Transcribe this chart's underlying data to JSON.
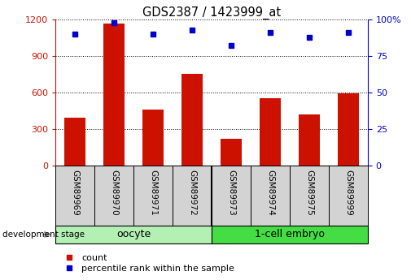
{
  "title": "GDS2387 / 1423999_at",
  "samples": [
    "GSM89969",
    "GSM89970",
    "GSM89971",
    "GSM89972",
    "GSM89973",
    "GSM89974",
    "GSM89975",
    "GSM89999"
  ],
  "counts": [
    390,
    1170,
    460,
    750,
    220,
    555,
    420,
    590
  ],
  "percentile_ranks": [
    90,
    98,
    90,
    93,
    82,
    91,
    88,
    91
  ],
  "group_boundary": 4,
  "group_labels": [
    "oocyte",
    "1-cell embryo"
  ],
  "group_color_light": "#b3f0b3",
  "group_color_dark": "#44dd44",
  "bar_color": "#cc1100",
  "dot_color": "#0000cc",
  "left_axis_color": "#cc1100",
  "right_axis_color": "#0000cc",
  "left_ylim": [
    0,
    1200
  ],
  "right_ylim": [
    0,
    100
  ],
  "left_yticks": [
    0,
    300,
    600,
    900,
    1200
  ],
  "right_yticks": [
    0,
    25,
    50,
    75,
    100
  ],
  "right_yticklabels": [
    "0",
    "25",
    "50",
    "75",
    "100%"
  ],
  "bg_label": "#d3d3d3",
  "dev_stage_label": "development stage",
  "legend_count_label": "count",
  "legend_pct_label": "percentile rank within the sample"
}
